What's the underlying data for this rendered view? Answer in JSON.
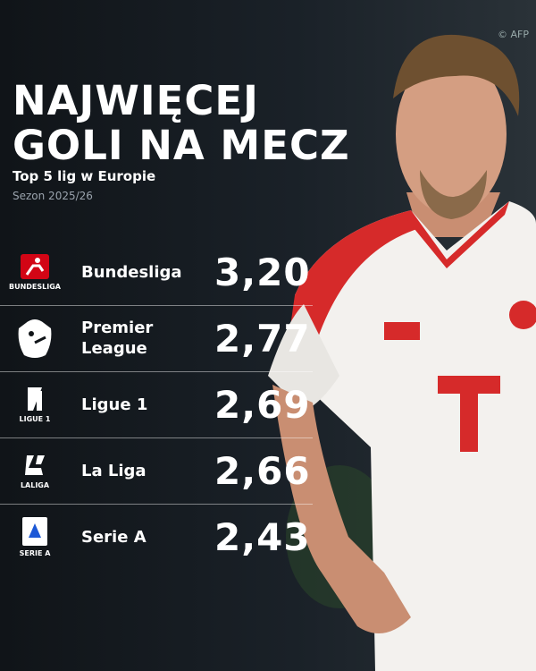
{
  "header": {
    "title_lines": [
      "NAJWIĘCEJ",
      "GOLI NA MECZ"
    ],
    "subtitle": "Top 5 lig w Europie",
    "season": "Sezon 2025/26",
    "credit": "© AFP"
  },
  "table": {
    "rows": [
      {
        "logo_text": "BUNDESLIGA",
        "league": "Bundesliga",
        "value": "3,20"
      },
      {
        "logo_text": null,
        "league": "Premier League",
        "value": "2,77"
      },
      {
        "logo_text": "LIGUE 1",
        "league": "Ligue 1",
        "value": "2,69"
      },
      {
        "logo_text": "LALIGA",
        "league": "La Liga",
        "value": "2,66"
      },
      {
        "logo_text": "SERIE A",
        "league": "Serie A",
        "value": "2,43"
      }
    ]
  }
}
